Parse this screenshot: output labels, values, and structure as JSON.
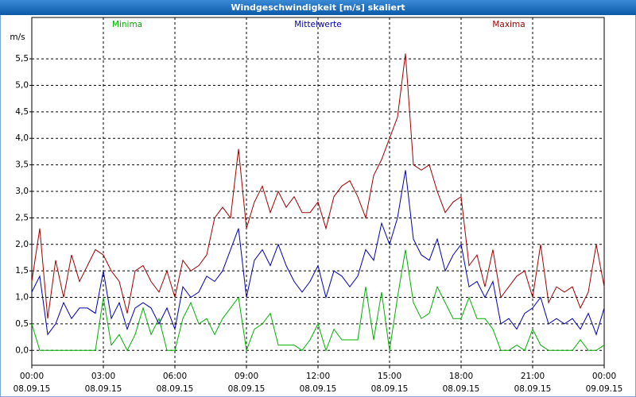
{
  "chart_data": {
    "type": "line",
    "title": "Windgeschwindigkeit [m/s] skaliert",
    "ylabel": "m/s",
    "x": [
      0,
      20,
      40,
      60,
      80,
      100,
      120,
      140,
      160,
      180,
      200,
      220,
      240,
      260,
      280,
      300,
      320,
      340,
      360,
      380,
      400,
      420,
      440,
      460,
      480,
      500,
      520,
      540,
      560,
      580,
      600,
      620,
      640,
      660,
      680,
      700,
      720,
      740,
      760,
      780,
      800,
      820,
      840,
      860,
      880,
      900,
      920,
      940,
      960,
      980,
      1000,
      1020,
      1040,
      1060,
      1080,
      1100,
      1120,
      1140,
      1160,
      1180,
      1200,
      1220,
      1240,
      1260,
      1280,
      1300,
      1320,
      1340,
      1360,
      1380,
      1400,
      1420,
      1440
    ],
    "series": [
      {
        "name": "Minima",
        "color": "#00b000",
        "values": [
          0.5,
          0,
          0,
          0,
          0,
          0,
          0,
          0,
          0,
          1.0,
          0.1,
          0.3,
          0,
          0.3,
          0.8,
          0.3,
          0.6,
          0,
          0,
          0.6,
          0.9,
          0.5,
          0.6,
          0.3,
          0.6,
          0.8,
          1.0,
          0,
          0.4,
          0.5,
          0.7,
          0.1,
          0.1,
          0.1,
          0,
          0.2,
          0.5,
          0,
          0.4,
          0.2,
          0.2,
          0.2,
          1.2,
          0.2,
          1.1,
          0,
          1.0,
          1.9,
          0.9,
          0.6,
          0.7,
          1.2,
          0.9,
          0.6,
          0.6,
          1.0,
          0.6,
          0.6,
          0.4,
          0,
          0,
          0.1,
          0,
          0.4,
          0.1,
          0,
          0,
          0,
          0,
          0.2,
          0,
          0,
          0.1
        ]
      },
      {
        "name": "Mittelwerte",
        "color": "#0000b0",
        "values": [
          1.1,
          1.4,
          0.3,
          0.5,
          0.9,
          0.6,
          0.8,
          0.8,
          0.7,
          1.5,
          0.6,
          0.9,
          0.4,
          0.8,
          0.9,
          0.8,
          0.5,
          0.8,
          0.4,
          1.2,
          1.0,
          1.1,
          1.4,
          1.3,
          1.5,
          1.9,
          2.3,
          1.0,
          1.7,
          1.9,
          1.6,
          2.0,
          1.6,
          1.3,
          1.1,
          1.3,
          1.6,
          1.0,
          1.5,
          1.4,
          1.2,
          1.4,
          1.9,
          1.7,
          2.4,
          2.0,
          2.5,
          3.4,
          2.1,
          1.8,
          1.7,
          2.1,
          1.5,
          1.8,
          2.0,
          1.2,
          1.3,
          1.0,
          1.3,
          0.5,
          0.6,
          0.4,
          0.7,
          0.8,
          1.0,
          0.5,
          0.6,
          0.5,
          0.6,
          0.4,
          0.7,
          0.3,
          0.8
        ]
      },
      {
        "name": "Maxima",
        "color": "#a00000",
        "values": [
          1.3,
          2.3,
          0.6,
          1.7,
          1.0,
          1.8,
          1.3,
          1.6,
          1.9,
          1.8,
          1.5,
          1.3,
          0.7,
          1.5,
          1.6,
          1.3,
          1.1,
          1.5,
          1.0,
          1.7,
          1.5,
          1.6,
          1.8,
          2.5,
          2.7,
          2.5,
          3.8,
          2.3,
          2.8,
          3.1,
          2.6,
          3.0,
          2.7,
          2.9,
          2.6,
          2.6,
          2.8,
          2.3,
          2.9,
          3.1,
          3.2,
          2.9,
          2.5,
          3.3,
          3.6,
          4.0,
          4.4,
          5.6,
          3.5,
          3.4,
          3.5,
          3.0,
          2.6,
          2.8,
          2.9,
          1.6,
          1.8,
          1.2,
          1.9,
          1.0,
          1.2,
          1.4,
          1.5,
          1.0,
          2.0,
          0.9,
          1.2,
          1.1,
          1.2,
          0.8,
          1.1,
          2.0,
          1.2
        ]
      }
    ],
    "xlim": [
      0,
      1440
    ],
    "xticks": [
      {
        "value": 0,
        "label": [
          "00:00",
          "08.09.15"
        ]
      },
      {
        "value": 180,
        "label": [
          "03:00",
          "08.09.15"
        ]
      },
      {
        "value": 360,
        "label": [
          "06:00",
          "08.09.15"
        ]
      },
      {
        "value": 540,
        "label": [
          "09:00",
          "08.09.15"
        ]
      },
      {
        "value": 720,
        "label": [
          "12:00",
          "08.09.15"
        ]
      },
      {
        "value": 900,
        "label": [
          "15:00",
          "08.09.15"
        ]
      },
      {
        "value": 1080,
        "label": [
          "18:00",
          "08.09.15"
        ]
      },
      {
        "value": 1260,
        "label": [
          "21:00",
          "08.09.15"
        ]
      },
      {
        "value": 1440,
        "label": [
          "00:00",
          "09.09.15"
        ]
      }
    ],
    "ylim": [
      -0.28,
      6.28
    ],
    "yticks": [
      {
        "value": 0,
        "label": "0,0"
      },
      {
        "value": 0.5,
        "label": "0,5"
      },
      {
        "value": 1,
        "label": "1,0"
      },
      {
        "value": 1.5,
        "label": "1,5"
      },
      {
        "value": 2,
        "label": "2,0"
      },
      {
        "value": 2.5,
        "label": "2,5"
      },
      {
        "value": 3,
        "label": "3,0"
      },
      {
        "value": 3.5,
        "label": "3,5"
      },
      {
        "value": 4,
        "label": "4,0"
      },
      {
        "value": 4.5,
        "label": "4,5"
      },
      {
        "value": 5,
        "label": "5,0"
      },
      {
        "value": 5.5,
        "label": "5,5"
      }
    ],
    "grid": true
  }
}
